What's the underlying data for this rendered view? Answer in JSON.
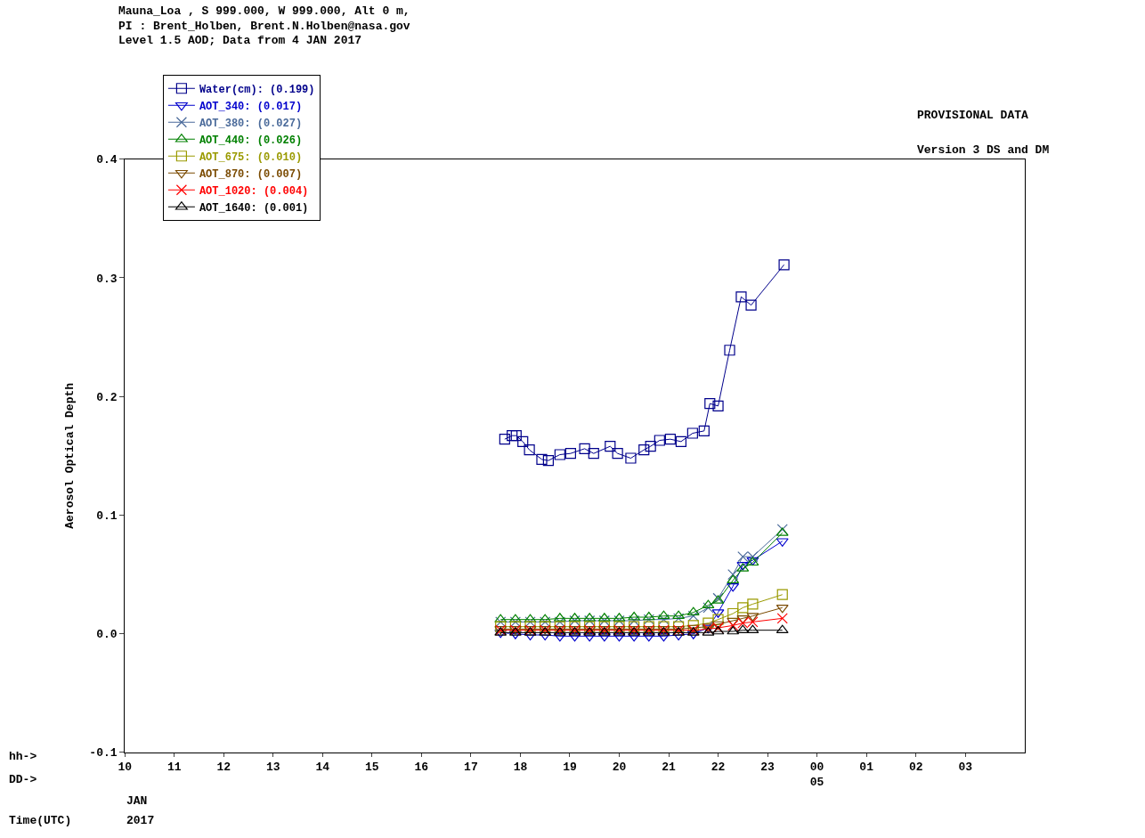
{
  "chart_data": [
    {
      "type": "line",
      "title": "Mauna_Loa , S 999.000, W 999.000, Alt 0 m,\nPI : Brent_Holben, Brent.N.Holben@nasa.gov\nLevel 1.5 AOD; Data from 4 JAN 2017",
      "ylabel": "Aerosol Optical Depth",
      "annotations": [
        "PROVISIONAL DATA",
        "Version 3 DS and DM",
        "hh->",
        "DD->",
        "Time(UTC)",
        "JAN",
        "2017"
      ],
      "x": [
        "2017-01-04T17:36",
        "2017-01-04T17:54",
        "2017-01-04T18:12",
        "2017-01-04T18:30",
        "2017-01-04T18:48",
        "2017-01-04T19:06",
        "2017-01-04T19:24",
        "2017-01-04T19:42",
        "2017-01-04T20:00",
        "2017-01-04T20:18",
        "2017-01-04T20:36",
        "2017-01-04T20:54",
        "2017-01-04T21:12",
        "2017-01-04T21:30",
        "2017-01-04T21:48",
        "2017-01-04T22:00",
        "2017-01-04T22:18",
        "2017-01-04T22:30",
        "2017-01-04T22:42",
        "2017-01-04T23:18"
      ],
      "xlim": [
        "2017-01-04T10:00",
        "2017-01-05T04:12"
      ],
      "xticks": [
        {
          "value": "2017-01-04T10:00",
          "label": "10"
        },
        {
          "value": "2017-01-04T11:00",
          "label": "11"
        },
        {
          "value": "2017-01-04T12:00",
          "label": "12"
        },
        {
          "value": "2017-01-04T13:00",
          "label": "13"
        },
        {
          "value": "2017-01-04T14:00",
          "label": "14"
        },
        {
          "value": "2017-01-04T15:00",
          "label": "15"
        },
        {
          "value": "2017-01-04T16:00",
          "label": "16"
        },
        {
          "value": "2017-01-04T17:00",
          "label": "17"
        },
        {
          "value": "2017-01-04T18:00",
          "label": "18"
        },
        {
          "value": "2017-01-04T19:00",
          "label": "19"
        },
        {
          "value": "2017-01-04T20:00",
          "label": "20"
        },
        {
          "value": "2017-01-04T21:00",
          "label": "21"
        },
        {
          "value": "2017-01-04T22:00",
          "label": "22"
        },
        {
          "value": "2017-01-04T23:00",
          "label": "23"
        },
        {
          "value": "2017-01-05T00:00",
          "label": "00\n05"
        },
        {
          "value": "2017-01-05T01:00",
          "label": "01"
        },
        {
          "value": "2017-01-05T02:00",
          "label": "02"
        },
        {
          "value": "2017-01-05T03:00",
          "label": "03"
        }
      ],
      "ylim": [
        -0.1,
        0.4
      ],
      "yticks": [
        {
          "value": -0.1,
          "label": "-0.1"
        },
        {
          "value": 0.0,
          "label": "0.0"
        },
        {
          "value": 0.1,
          "label": "0.1"
        },
        {
          "value": 0.2,
          "label": "0.2"
        },
        {
          "value": 0.3,
          "label": "0.3"
        },
        {
          "value": 0.4,
          "label": "0.4"
        }
      ],
      "grid": false,
      "legend": "top left",
      "line_style": "solid",
      "series": [
        {
          "name": "Water(cm): (0.199)",
          "color": "#00008b",
          "marker": "square",
          "x": [
            "2017-01-04T17:41",
            "2017-01-04T17:50",
            "2017-01-04T17:55",
            "2017-01-04T18:03",
            "2017-01-04T18:11",
            "2017-01-04T18:26",
            "2017-01-04T18:34",
            "2017-01-04T18:48",
            "2017-01-04T19:01",
            "2017-01-04T19:18",
            "2017-01-04T19:29",
            "2017-01-04T19:49",
            "2017-01-04T19:58",
            "2017-01-04T20:14",
            "2017-01-04T20:30",
            "2017-01-04T20:38",
            "2017-01-04T20:49",
            "2017-01-04T21:02",
            "2017-01-04T21:15",
            "2017-01-04T21:29",
            "2017-01-04T21:43",
            "2017-01-04T21:50",
            "2017-01-04T22:00",
            "2017-01-04T22:14",
            "2017-01-04T22:28",
            "2017-01-04T22:40",
            "2017-01-04T23:20"
          ],
          "values": [
            0.164,
            0.167,
            0.167,
            0.162,
            0.155,
            0.147,
            0.146,
            0.151,
            0.152,
            0.156,
            0.152,
            0.158,
            0.152,
            0.148,
            0.155,
            0.158,
            0.163,
            0.164,
            0.162,
            0.169,
            0.171,
            0.194,
            0.192,
            0.239,
            0.284,
            0.277,
            0.311
          ]
        },
        {
          "name": "AOT_340: (0.017)",
          "color": "#0000cd",
          "marker": "triangle-down",
          "values": [
            0.001,
            0.0,
            -0.001,
            -0.001,
            -0.002,
            -0.002,
            -0.002,
            -0.002,
            -0.002,
            -0.002,
            -0.002,
            -0.002,
            -0.001,
            0.0,
            0.005,
            0.018,
            0.04,
            0.058,
            0.062,
            0.078
          ]
        },
        {
          "name": "AOT_380: (0.027)",
          "color": "#4a6a9a",
          "marker": "x",
          "values": [
            0.01,
            0.01,
            0.01,
            0.01,
            0.01,
            0.011,
            0.011,
            0.011,
            0.011,
            0.011,
            0.012,
            0.012,
            0.013,
            0.015,
            0.022,
            0.03,
            0.05,
            0.065,
            0.065,
            0.088
          ]
        },
        {
          "name": "AOT_440: (0.026)",
          "color": "#008000",
          "marker": "triangle-up",
          "values": [
            0.012,
            0.012,
            0.012,
            0.012,
            0.013,
            0.013,
            0.013,
            0.013,
            0.013,
            0.014,
            0.014,
            0.015,
            0.015,
            0.018,
            0.024,
            0.028,
            0.045,
            0.055,
            0.06,
            0.085
          ]
        },
        {
          "name": "AOT_675: (0.010)",
          "color": "#9a9a00",
          "marker": "square",
          "values": [
            0.006,
            0.006,
            0.006,
            0.006,
            0.006,
            0.006,
            0.006,
            0.006,
            0.006,
            0.006,
            0.006,
            0.006,
            0.006,
            0.007,
            0.009,
            0.012,
            0.017,
            0.022,
            0.025,
            0.033
          ]
        },
        {
          "name": "AOT_870: (0.007)",
          "color": "#7a4a00",
          "marker": "triangle-down",
          "values": [
            0.004,
            0.004,
            0.004,
            0.004,
            0.004,
            0.004,
            0.004,
            0.004,
            0.004,
            0.004,
            0.004,
            0.004,
            0.004,
            0.005,
            0.006,
            0.008,
            0.011,
            0.013,
            0.015,
            0.022
          ]
        },
        {
          "name": "AOT_1020: (0.004)",
          "color": "#ff0000",
          "marker": "x",
          "values": [
            0.003,
            0.003,
            0.003,
            0.003,
            0.003,
            0.003,
            0.003,
            0.003,
            0.003,
            0.003,
            0.003,
            0.003,
            0.003,
            0.003,
            0.004,
            0.005,
            0.007,
            0.009,
            0.01,
            0.013
          ]
        },
        {
          "name": "AOT_1640: (0.001)",
          "color": "#000000",
          "marker": "triangle-up",
          "values": [
            0.001,
            0.001,
            0.001,
            0.001,
            0.001,
            0.001,
            0.001,
            0.001,
            0.001,
            0.001,
            0.001,
            0.001,
            0.001,
            0.001,
            0.001,
            0.002,
            0.002,
            0.003,
            0.003,
            0.003
          ]
        }
      ]
    }
  ]
}
